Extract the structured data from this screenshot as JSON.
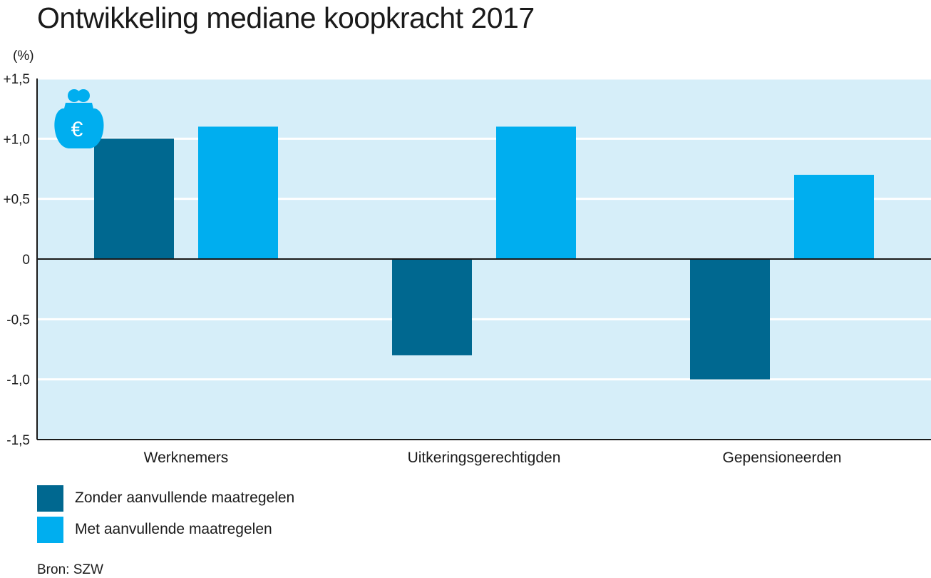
{
  "chart_data": {
    "type": "bar",
    "title": "Ontwikkeling mediane koopkracht 2017",
    "ylabel": "(%)",
    "categories": [
      "Werknemers",
      "Uitkeringsgerechtigden",
      "Gepensioneerden"
    ],
    "series": [
      {
        "name": "Zonder aanvullende maatregelen",
        "values": [
          1.0,
          -0.8,
          -1.0
        ],
        "color": "#006890"
      },
      {
        "name": "Met aanvullende maatregelen",
        "values": [
          1.1,
          1.1,
          0.7
        ],
        "color": "#00aeef"
      }
    ],
    "ylim": [
      -1.5,
      1.5
    ],
    "yticks": [
      1.5,
      1.0,
      0.5,
      0,
      -0.5,
      -1.0,
      -1.5
    ],
    "ytick_labels": [
      "+1,5",
      "+1,0",
      "+0,5",
      "0",
      "-0,5",
      "-1,0",
      "-1,5"
    ],
    "grid": true,
    "legend_position": "bottom-left",
    "plot_background": "#d6eef9",
    "icon": "euro-purse-icon"
  },
  "source": "Bron: SZW"
}
